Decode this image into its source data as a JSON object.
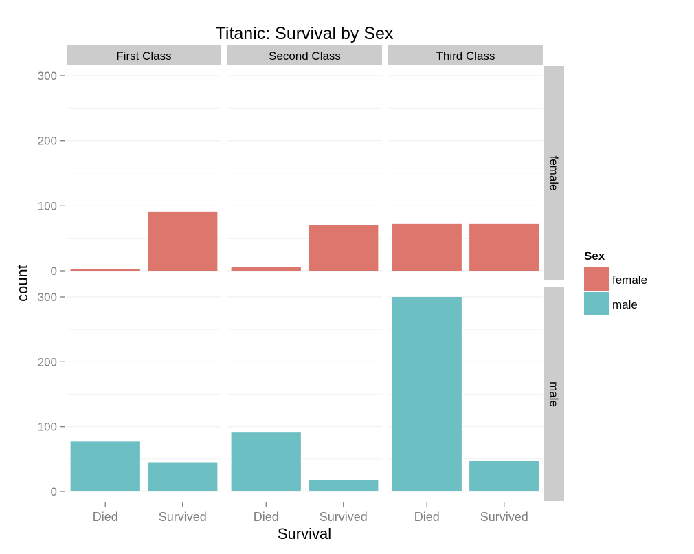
{
  "chart_data": {
    "type": "bar",
    "title": "Titanic: Survival by Sex",
    "xlabel": "Survival",
    "ylabel": "count",
    "categories": [
      "Died",
      "Survived"
    ],
    "ylim": [
      0,
      300
    ],
    "yticks": [
      0,
      100,
      200,
      300
    ],
    "grid": true,
    "col_facets": [
      "First Class",
      "Second Class",
      "Third Class"
    ],
    "row_facets": [
      "female",
      "male"
    ],
    "legend": {
      "title": "Sex",
      "position": "right",
      "entries": [
        {
          "label": "female",
          "color": "#DD766D"
        },
        {
          "label": "male",
          "color": "#6CBFC3"
        }
      ]
    },
    "panels": [
      {
        "col": "First Class",
        "row": "female",
        "values": [
          3,
          91
        ]
      },
      {
        "col": "Second Class",
        "row": "female",
        "values": [
          6,
          70
        ]
      },
      {
        "col": "Third Class",
        "row": "female",
        "values": [
          72,
          72
        ]
      },
      {
        "col": "First Class",
        "row": "male",
        "values": [
          77,
          45
        ]
      },
      {
        "col": "Second Class",
        "row": "male",
        "values": [
          91,
          17
        ]
      },
      {
        "col": "Third Class",
        "row": "male",
        "values": [
          300,
          47
        ]
      }
    ]
  },
  "colors": {
    "strip": "#CCCCCC",
    "panel": "#FFFFFF",
    "grid": "#F0F0F0",
    "axis_text": "#7F7F7F"
  }
}
